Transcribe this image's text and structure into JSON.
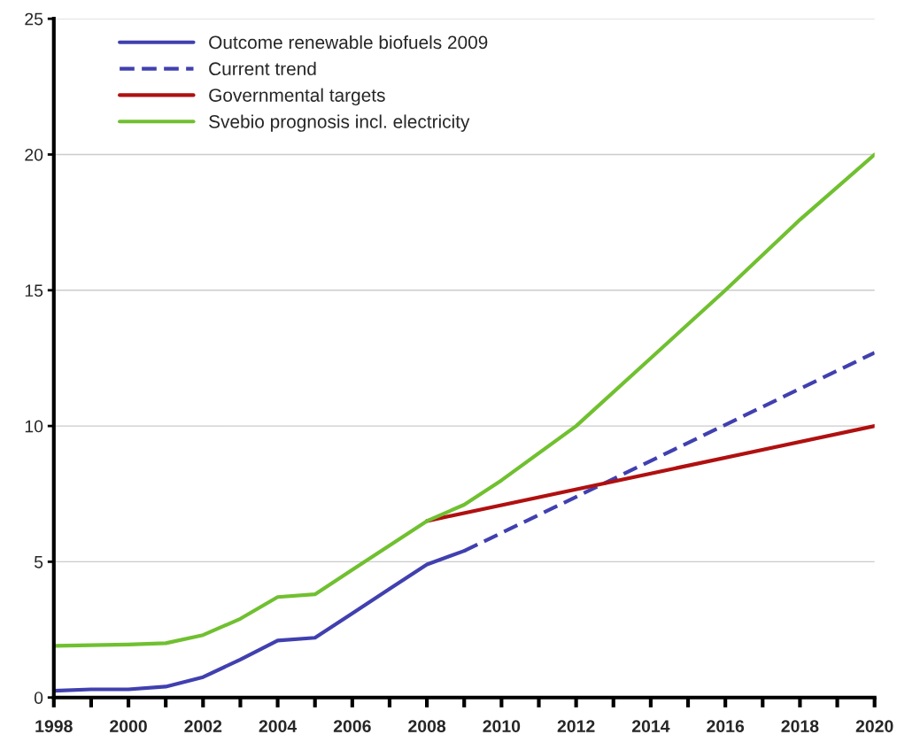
{
  "chart_data": {
    "type": "line",
    "legend": "top left",
    "grid": "y",
    "xlim": [
      1998,
      2020
    ],
    "ylim": [
      0,
      25
    ],
    "xticks": [
      1998,
      {
        "value": 1999,
        "label": null
      },
      2000,
      {
        "value": 2001,
        "label": null
      },
      2002,
      {
        "value": 2003,
        "label": null
      },
      2004,
      {
        "value": 2005,
        "label": null
      },
      2006,
      {
        "value": 2007,
        "label": null
      },
      2008,
      {
        "value": 2009,
        "label": null
      },
      2010,
      {
        "value": 2011,
        "label": null
      },
      2012,
      {
        "value": 2013,
        "label": null
      },
      2014,
      {
        "value": 2015,
        "label": null
      },
      2016,
      {
        "value": 2017,
        "label": null
      },
      2018,
      {
        "value": 2019,
        "label": null
      },
      2020
    ],
    "yticks": [
      0,
      5,
      10,
      15,
      20,
      25
    ],
    "series": [
      {
        "name": "Outcome renewable biofuels 2009",
        "color": "#4040b0",
        "line_style": "solid",
        "x": [
          1998,
          1999,
          2000,
          2001,
          2002,
          2003,
          2004,
          2005,
          2006,
          2007,
          2008,
          2009
        ],
        "values": [
          0.25,
          0.3,
          0.3,
          0.4,
          0.75,
          1.4,
          2.1,
          2.2,
          3.1,
          4.0,
          4.9,
          5.4
        ]
      },
      {
        "name": "Current trend",
        "color": "#4040b0",
        "line_style": "dashed",
        "x": [
          2009,
          2020
        ],
        "values": [
          5.4,
          12.7
        ]
      },
      {
        "name": "Governmental targets",
        "color": "#b01010",
        "line_style": "solid",
        "x": [
          2008,
          2020
        ],
        "values": [
          6.5,
          10.0
        ]
      },
      {
        "name": "Svebio prognosis incl. electricity",
        "color": "#70c030",
        "line_style": "solid",
        "x": [
          1998,
          2000,
          2001,
          2002,
          2003,
          2004,
          2005,
          2006,
          2007,
          2008,
          2009,
          2010,
          2012,
          2014,
          2016,
          2018,
          2020
        ],
        "values": [
          1.9,
          1.95,
          2.0,
          2.3,
          2.9,
          3.7,
          3.8,
          4.7,
          5.6,
          6.5,
          7.1,
          8.0,
          10.0,
          12.5,
          15.0,
          17.6,
          20.0
        ]
      }
    ]
  }
}
